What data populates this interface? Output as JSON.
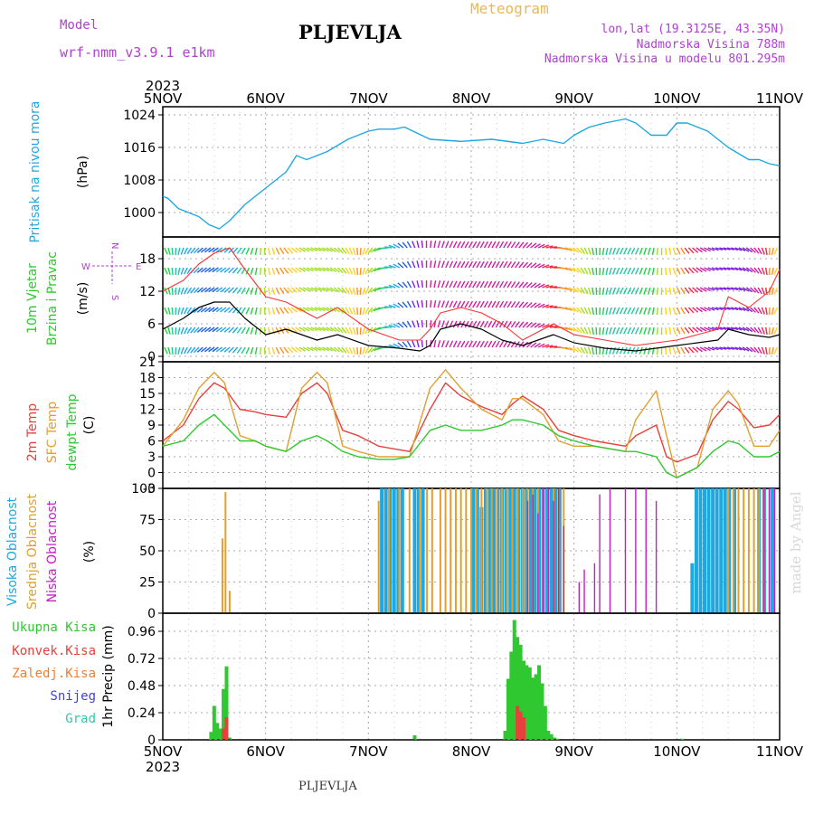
{
  "header": {
    "title": "PLJEVLJA",
    "model_label": "Model",
    "model_name": "wrf-nmm_v3.9.1 e1km",
    "chart_type_label": "Meteogram",
    "lonlat": "lon,lat (19.3125E, 43.35N)",
    "elevation": "Nadmorska Visina 788m",
    "elevation_model": "Nadmorska Visina u modelu 801.295m"
  },
  "footer": {
    "station": "PLJEVLJA"
  },
  "credit": "made by Angel",
  "colors": {
    "pressure": "#1fa8e0",
    "temp2m": "#e8403c",
    "sfc_temp": "#e0a030",
    "dewpt": "#30c830",
    "high_cloud": "#1fa8e0",
    "mid_cloud": "#e0a030",
    "low_cloud": "#c020c0",
    "total_precip": "#30c830",
    "conv_precip": "#e8403c",
    "frz_precip": "#f08030",
    "snow": "#4040e0",
    "graupel": "#30c8b0",
    "legend_purple": "#b040d0"
  },
  "chart_data": [
    {
      "type": "line",
      "name": "pressure",
      "x_ticks": [
        "5NOV",
        "6NOV",
        "7NOV",
        "8NOV",
        "9NOV",
        "10NOV",
        "11NOV"
      ],
      "year_label": "2023",
      "ylabel_left": "Pritisak na nivou mora",
      "ylabel_unit": "(hPa)",
      "y_ticks": [
        1000,
        1008,
        1016,
        1024
      ],
      "ylim": [
        994,
        1026
      ],
      "series": [
        {
          "x": [
            0,
            0.05,
            0.15,
            0.25,
            0.35,
            0.45,
            0.55,
            0.65,
            0.8,
            1,
            1.2,
            1.3,
            1.4,
            1.6,
            1.8,
            2,
            2.1,
            2.25,
            2.35,
            2.6,
            2.9,
            3.2,
            3.5,
            3.7,
            3.9,
            4,
            4.15,
            4.3,
            4.5,
            4.6,
            4.75,
            4.9,
            5,
            5.1,
            5.3,
            5.5,
            5.7,
            5.8,
            5.9,
            6
          ],
          "y": [
            1004,
            1003.5,
            1001,
            1000,
            999,
            997,
            996,
            998,
            1002,
            1006,
            1010,
            1014,
            1013,
            1015,
            1018,
            1020,
            1020.5,
            1020.5,
            1021,
            1018,
            1017.5,
            1018,
            1017,
            1018,
            1017,
            1019,
            1021,
            1022,
            1023,
            1022,
            1019,
            1019,
            1022,
            1022,
            1020,
            1016,
            1013,
            1013,
            1012,
            1011.5
          ]
        }
      ]
    },
    {
      "type": "line",
      "name": "wind",
      "ylabel_left_1": "10m Vjetar",
      "ylabel_left_2": "Brzina i Pravac",
      "ylabel_unit": "(m/s)",
      "compass": {
        "n": "N",
        "w": "W",
        "e": "E",
        "s": "S"
      },
      "y_ticks": [
        0,
        6,
        12,
        18
      ],
      "ylim": [
        -1,
        22
      ],
      "series": [
        {
          "name": "speed",
          "x": [
            0,
            0.2,
            0.35,
            0.5,
            0.65,
            0.8,
            1,
            1.2,
            1.5,
            1.7,
            2,
            2.3,
            2.5,
            2.6,
            2.7,
            2.9,
            3.1,
            3.3,
            3.5,
            3.8,
            4,
            4.3,
            4.6,
            4.8,
            5,
            5.2,
            5.4,
            5.5,
            5.7,
            5.9,
            6
          ],
          "y": [
            5,
            7,
            9,
            10,
            10,
            7,
            4,
            5,
            3,
            4,
            2,
            1.5,
            1,
            2,
            5,
            6,
            5,
            3,
            2,
            4,
            2.5,
            1.5,
            1,
            1.5,
            2,
            2.5,
            3,
            5,
            4,
            3.5,
            4
          ]
        },
        {
          "name": "gust",
          "x": [
            0,
            0.2,
            0.35,
            0.5,
            0.65,
            0.8,
            1,
            1.2,
            1.5,
            1.7,
            2,
            2.3,
            2.5,
            2.6,
            2.7,
            2.9,
            3.1,
            3.3,
            3.5,
            3.8,
            4,
            4.3,
            4.6,
            4.8,
            5,
            5.2,
            5.4,
            5.5,
            5.7,
            5.9,
            6
          ],
          "y": [
            12,
            14,
            17,
            19,
            20,
            16,
            11,
            10,
            7,
            9,
            5,
            3,
            3,
            5,
            8,
            9,
            8,
            6,
            3,
            6,
            4,
            3,
            2,
            2.5,
            3,
            4,
            5,
            11,
            9,
            12,
            16
          ]
        }
      ]
    },
    {
      "type": "line",
      "name": "temperature",
      "ylabel_left_1": "2m Temp",
      "ylabel_left_2": "SFC Temp",
      "ylabel_left_3": "dewpt Temp",
      "ylabel_unit": "(C)",
      "y_ticks": [
        -3,
        0,
        3,
        6,
        9,
        12,
        15,
        18,
        21
      ],
      "ylim": [
        -3,
        21
      ],
      "series": [
        {
          "name": "2m Temp",
          "x": [
            0,
            0.2,
            0.35,
            0.5,
            0.6,
            0.75,
            0.9,
            1,
            1.2,
            1.35,
            1.5,
            1.6,
            1.75,
            1.9,
            2.1,
            2.25,
            2.4,
            2.6,
            2.75,
            2.9,
            3.1,
            3.3,
            3.4,
            3.5,
            3.7,
            3.85,
            4,
            4.2,
            4.5,
            4.6,
            4.8,
            4.9,
            5,
            5.2,
            5.35,
            5.5,
            5.6,
            5.75,
            5.9,
            6
          ],
          "y": [
            6,
            9,
            14,
            17,
            16,
            12,
            11.5,
            11,
            10.5,
            15,
            17,
            15,
            8,
            7,
            5,
            4.5,
            4,
            12,
            17,
            14.5,
            12.5,
            11,
            13,
            14.5,
            12,
            8,
            7,
            6,
            5,
            7,
            9,
            3,
            2,
            3.5,
            10,
            13.5,
            12,
            8.5,
            9,
            11
          ]
        },
        {
          "name": "SFC Temp",
          "x": [
            0,
            0.2,
            0.35,
            0.5,
            0.6,
            0.75,
            0.9,
            1,
            1.2,
            1.35,
            1.5,
            1.6,
            1.75,
            1.9,
            2.1,
            2.25,
            2.4,
            2.6,
            2.75,
            2.9,
            3.1,
            3.3,
            3.4,
            3.5,
            3.7,
            3.85,
            4,
            4.2,
            4.5,
            4.6,
            4.8,
            4.9,
            5,
            5.2,
            5.35,
            5.5,
            5.6,
            5.75,
            5.9,
            6
          ],
          "y": [
            5,
            10,
            16,
            19,
            17,
            7,
            6,
            5,
            4,
            16,
            19,
            17,
            5,
            4,
            3,
            3,
            3,
            16,
            19.5,
            16,
            12,
            10,
            14,
            14,
            11,
            6,
            5,
            5,
            4,
            10,
            15.5,
            7,
            -1,
            1,
            12,
            15.5,
            13,
            5,
            5,
            8
          ]
        },
        {
          "name": "dewpt Temp",
          "x": [
            0,
            0.2,
            0.35,
            0.5,
            0.6,
            0.75,
            0.9,
            1,
            1.2,
            1.35,
            1.5,
            1.6,
            1.75,
            1.9,
            2.1,
            2.25,
            2.4,
            2.6,
            2.75,
            2.9,
            3.1,
            3.3,
            3.4,
            3.5,
            3.7,
            3.85,
            4,
            4.2,
            4.5,
            4.6,
            4.8,
            4.9,
            5,
            5.2,
            5.35,
            5.5,
            5.6,
            5.75,
            5.9,
            6
          ],
          "y": [
            5,
            6,
            9,
            11,
            9,
            6,
            6,
            5,
            4,
            6,
            7,
            6,
            4,
            3,
            2.5,
            2.5,
            3,
            8,
            9,
            8,
            8,
            9,
            10,
            10,
            9,
            7,
            6,
            5,
            4,
            4,
            3,
            0,
            -1,
            1,
            4,
            6,
            5.5,
            3,
            3,
            4
          ]
        }
      ]
    },
    {
      "type": "bar",
      "name": "cloud_cover",
      "ylabel_left_1": "Visoka Oblacnost",
      "ylabel_left_2": "Srednja Oblacnost",
      "ylabel_left_3": "Niska Oblacnost",
      "ylabel_unit": "(%)",
      "y_ticks": [
        0,
        25,
        50,
        75,
        100
      ],
      "ylim": [
        0,
        100
      ],
      "series": [
        {
          "name": "Visoka Oblacnost",
          "x": [
            2.13,
            2.17,
            2.21,
            2.25,
            2.29,
            2.33,
            2.45,
            2.49,
            2.53,
            3.02,
            3.06,
            3.1,
            3.14,
            3.18,
            3.22,
            3.26,
            3.3,
            3.34,
            3.38,
            3.42,
            3.46,
            3.5,
            3.54,
            3.58,
            3.62,
            3.66,
            3.7,
            3.74,
            3.78,
            3.82,
            3.86,
            5.15,
            5.19,
            5.23,
            5.27,
            5.31,
            5.35,
            5.39,
            5.43,
            5.47,
            5.51,
            5.56,
            5.8,
            5.85,
            5.93
          ],
          "y": [
            100,
            100,
            100,
            100,
            100,
            100,
            100,
            100,
            100,
            100,
            100,
            85,
            100,
            100,
            100,
            100,
            100,
            100,
            100,
            100,
            100,
            100,
            100,
            100,
            100,
            100,
            100,
            100,
            100,
            100,
            100,
            40,
            100,
            100,
            100,
            100,
            100,
            100,
            100,
            100,
            100,
            100,
            100,
            100,
            100
          ]
        },
        {
          "name": "Srednja Oblacnost",
          "x": [
            0.58,
            0.61,
            0.65,
            2.1,
            2.2,
            2.3,
            2.4,
            2.5,
            2.57,
            2.62,
            2.7,
            2.75,
            2.8,
            2.85,
            2.9,
            2.95,
            3.0,
            3.05,
            3.1,
            3.15,
            3.2,
            3.25,
            3.3,
            3.35,
            3.4,
            3.45,
            3.5,
            3.55,
            3.6,
            3.65,
            3.7,
            3.75,
            3.8,
            3.85,
            3.9,
            5.5,
            5.55,
            5.6,
            5.65,
            5.7,
            5.75,
            5.8,
            5.85,
            5.9,
            5.95
          ],
          "y": [
            60,
            97,
            18,
            90,
            100,
            100,
            100,
            100,
            100,
            100,
            100,
            100,
            100,
            100,
            100,
            100,
            100,
            100,
            100,
            100,
            100,
            100,
            100,
            100,
            100,
            100,
            100,
            100,
            100,
            100,
            100,
            100,
            100,
            100,
            100,
            100,
            100,
            100,
            100,
            100,
            100,
            100,
            100,
            100,
            100
          ]
        },
        {
          "name": "Niska Oblacnost",
          "x": [
            3.55,
            3.6,
            3.65,
            3.7,
            3.75,
            3.8,
            3.85,
            3.9,
            4.05,
            4.1,
            4.2,
            4.25,
            4.35,
            4.5,
            4.6,
            4.7,
            4.8,
            5.85,
            5.9,
            5.95
          ],
          "y": [
            90,
            95,
            80,
            100,
            100,
            90,
            100,
            70,
            25,
            35,
            40,
            95,
            100,
            100,
            100,
            100,
            90,
            100,
            100,
            100
          ]
        }
      ]
    },
    {
      "type": "bar",
      "name": "precip",
      "ylabel_unit": "1hr Precip (mm)",
      "legend": [
        "Ukupna Kisa",
        "Konvek.Kisa",
        "Zaledj.Kisa",
        "Snijeg",
        "Grad"
      ],
      "y_ticks": [
        0,
        0.24,
        0.48,
        0.72,
        0.96
      ],
      "ylim": [
        0,
        1.12
      ],
      "series": [
        {
          "name": "Ukupna Kisa",
          "x": [
            0.47,
            0.5,
            0.53,
            0.56,
            0.59,
            0.62,
            0.65,
            2.45,
            3.33,
            3.36,
            3.39,
            3.42,
            3.45,
            3.48,
            3.51,
            3.54,
            3.57,
            3.6,
            3.63,
            3.66,
            3.69,
            3.72,
            3.75,
            3.78,
            3.81,
            3.84,
            5.05
          ],
          "y": [
            0.07,
            0.3,
            0.15,
            0.1,
            0.45,
            0.65,
            0.02,
            0.04,
            0.08,
            0.54,
            0.78,
            1.06,
            0.91,
            0.84,
            0.7,
            0.66,
            0.64,
            0.55,
            0.58,
            0.66,
            0.5,
            0.3,
            0.08,
            0.05,
            0.02,
            0.01,
            0.01
          ]
        },
        {
          "name": "Konvek.Kisa",
          "x": [
            0.59,
            0.62,
            3.45,
            3.48,
            3.51
          ],
          "y": [
            0.1,
            0.2,
            0.3,
            0.25,
            0.2
          ]
        }
      ]
    }
  ]
}
